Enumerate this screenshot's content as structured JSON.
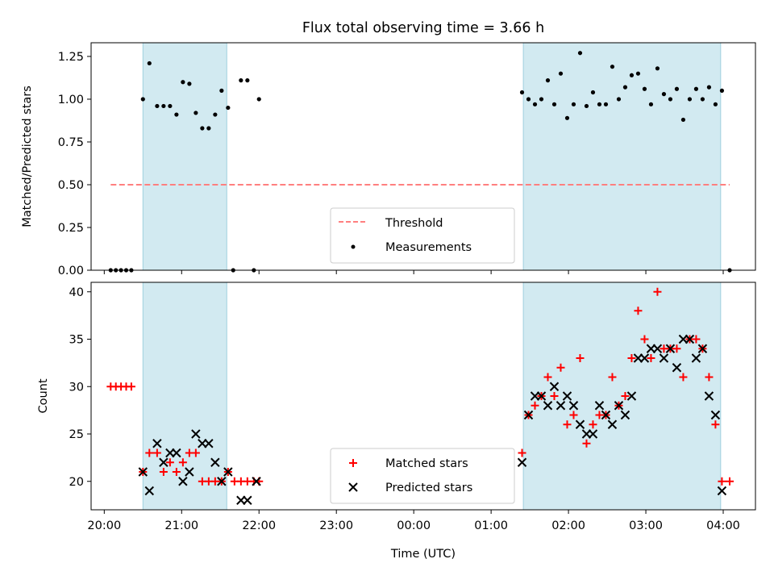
{
  "chart_data": [
    {
      "type": "scatter",
      "title": "Flux total observing time = 3.66 h",
      "xlabel": "",
      "ylabel": "Matched/Predicted stars",
      "x_unit": "UTC time",
      "xlim": [
        "20:00",
        "04:25"
      ],
      "ylim": [
        0,
        1.33
      ],
      "yticks": [
        "0.00",
        "0.25",
        "0.50",
        "0.75",
        "1.00",
        "1.25"
      ],
      "shaded_intervals": [
        [
          "20:30",
          "21:35"
        ],
        [
          "01:25",
          "03:58"
        ]
      ],
      "shade_color": "#add8e6",
      "legend_position": "lower-center",
      "series": [
        {
          "name": "Threshold",
          "kind": "dashed-line",
          "color": "#ff7f7f",
          "x": [
            "20:05",
            "04:05"
          ],
          "y": [
            0.5,
            0.5
          ]
        },
        {
          "name": "Measurements",
          "kind": "dot",
          "color": "#000000",
          "x": [
            "20:05",
            "20:09",
            "20:13",
            "20:17",
            "20:21",
            "20:30",
            "20:35",
            "20:41",
            "20:46",
            "20:51",
            "20:56",
            "21:01",
            "21:06",
            "21:11",
            "21:16",
            "21:21",
            "21:26",
            "21:31",
            "21:36",
            "21:40",
            "21:46",
            "21:51",
            "21:56",
            "22:00",
            "01:24",
            "01:29",
            "01:34",
            "01:39",
            "01:44",
            "01:49",
            "01:54",
            "01:59",
            "02:04",
            "02:09",
            "02:14",
            "02:19",
            "02:24",
            "02:29",
            "02:34",
            "02:39",
            "02:44",
            "02:49",
            "02:54",
            "02:59",
            "03:04",
            "03:09",
            "03:14",
            "03:19",
            "03:24",
            "03:29",
            "03:34",
            "03:39",
            "03:44",
            "03:49",
            "03:54",
            "03:59",
            "04:05"
          ],
          "y": [
            0,
            0,
            0,
            0,
            0,
            1.0,
            1.21,
            0.96,
            0.96,
            0.96,
            0.91,
            1.1,
            1.09,
            0.92,
            0.83,
            0.83,
            0.91,
            1.05,
            0.95,
            0,
            1.11,
            1.11,
            0,
            1.0,
            1.04,
            1.0,
            0.97,
            1.0,
            1.11,
            0.97,
            1.15,
            0.89,
            0.97,
            1.27,
            0.96,
            1.04,
            0.97,
            0.97,
            1.19,
            1.0,
            1.07,
            1.14,
            1.15,
            1.06,
            0.97,
            1.18,
            1.03,
            1.0,
            1.06,
            0.88,
            1.0,
            1.06,
            1.0,
            1.07,
            0.97,
            1.05,
            0
          ]
        }
      ]
    },
    {
      "type": "scatter",
      "title": "",
      "xlabel": "Time (UTC)",
      "ylabel": "Count",
      "x_unit": "UTC time",
      "xlim": [
        "20:00",
        "04:25"
      ],
      "ylim": [
        17,
        41
      ],
      "xticks": [
        "20:00",
        "21:00",
        "22:00",
        "23:00",
        "00:00",
        "01:00",
        "02:00",
        "03:00",
        "04:00"
      ],
      "yticks": [
        "20",
        "25",
        "30",
        "35",
        "40"
      ],
      "shaded_intervals": [
        [
          "20:30",
          "21:35"
        ],
        [
          "01:25",
          "03:58"
        ]
      ],
      "shade_color": "#add8e6",
      "legend_position": "lower-center",
      "series": [
        {
          "name": "Matched stars",
          "kind": "plus",
          "color": "#ff0000",
          "x": [
            "20:05",
            "20:09",
            "20:13",
            "20:17",
            "20:21",
            "20:30",
            "20:35",
            "20:41",
            "20:46",
            "20:51",
            "20:56",
            "21:01",
            "21:06",
            "21:11",
            "21:16",
            "21:21",
            "21:26",
            "21:31",
            "21:36",
            "21:41",
            "21:46",
            "21:51",
            "21:56",
            "22:00",
            "01:24",
            "01:29",
            "01:34",
            "01:39",
            "01:44",
            "01:49",
            "01:54",
            "01:59",
            "02:04",
            "02:09",
            "02:14",
            "02:19",
            "02:24",
            "02:29",
            "02:34",
            "02:39",
            "02:44",
            "02:49",
            "02:54",
            "02:59",
            "03:04",
            "03:09",
            "03:14",
            "03:19",
            "03:24",
            "03:29",
            "03:34",
            "03:39",
            "03:44",
            "03:49",
            "03:54",
            "03:59",
            "04:05"
          ],
          "y": [
            30,
            30,
            30,
            30,
            30,
            21,
            23,
            23,
            21,
            22,
            21,
            22,
            23,
            23,
            20,
            20,
            20,
            20,
            21,
            20,
            20,
            20,
            20,
            20,
            23,
            27,
            28,
            29,
            31,
            29,
            32,
            26,
            27,
            33,
            24,
            26,
            27,
            27,
            31,
            28,
            29,
            33,
            38,
            35,
            33,
            40,
            34,
            34,
            34,
            31,
            35,
            35,
            34,
            31,
            26,
            20,
            20
          ]
        },
        {
          "name": "Predicted stars",
          "kind": "x",
          "color": "#000000",
          "x": [
            "20:30",
            "20:35",
            "20:41",
            "20:46",
            "20:51",
            "20:56",
            "21:01",
            "21:06",
            "21:11",
            "21:16",
            "21:21",
            "21:26",
            "21:31",
            "21:36",
            "21:46",
            "21:51",
            "21:58",
            "01:24",
            "01:29",
            "01:34",
            "01:39",
            "01:44",
            "01:49",
            "01:54",
            "01:59",
            "02:04",
            "02:09",
            "02:14",
            "02:19",
            "02:24",
            "02:29",
            "02:34",
            "02:39",
            "02:44",
            "02:49",
            "02:54",
            "02:59",
            "03:04",
            "03:09",
            "03:14",
            "03:19",
            "03:24",
            "03:29",
            "03:34",
            "03:39",
            "03:44",
            "03:49",
            "03:54",
            "03:59"
          ],
          "y": [
            21,
            19,
            24,
            22,
            23,
            23,
            20,
            21,
            25,
            24,
            24,
            22,
            20,
            21,
            18,
            18,
            20,
            22,
            27,
            29,
            29,
            28,
            30,
            28,
            29,
            28,
            26,
            25,
            25,
            28,
            27,
            26,
            28,
            27,
            29,
            33,
            33,
            34,
            34,
            33,
            34,
            32,
            35,
            35,
            33,
            34,
            29,
            27,
            19
          ]
        }
      ]
    }
  ]
}
